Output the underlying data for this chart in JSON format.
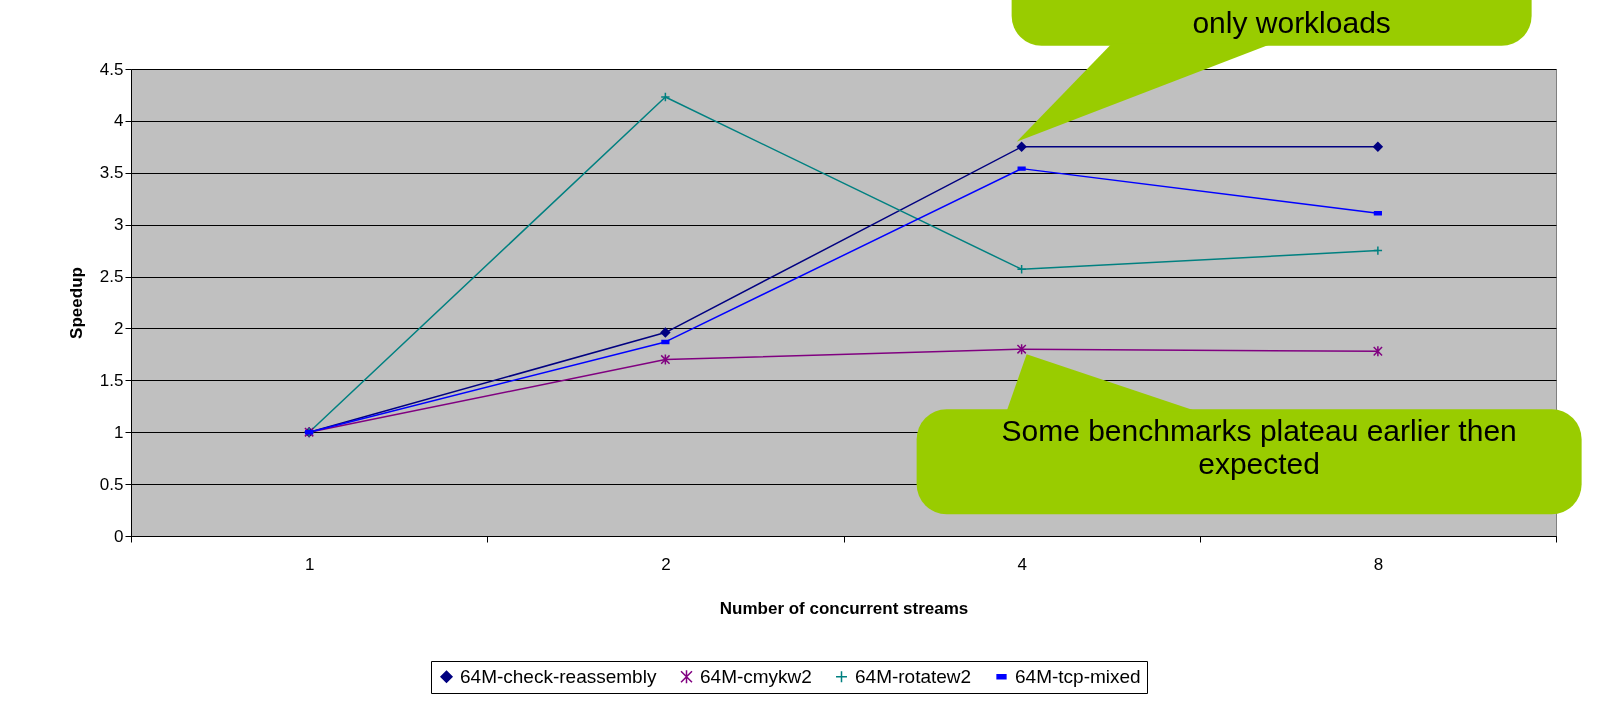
{
  "chart_data": {
    "type": "line",
    "xlabel": "Number of concurrent streams",
    "ylabel": "Speedup",
    "categories": [
      "1",
      "2",
      "4",
      "8"
    ],
    "ylim": [
      0,
      4.5
    ],
    "yticks": [
      0,
      0.5,
      1,
      1.5,
      2,
      2.5,
      3,
      3.5,
      4,
      4.5
    ],
    "grid": "y",
    "legend": "bottom",
    "series": [
      {
        "name": "64M-check-reassembly",
        "color": "#000080",
        "marker": "diamond",
        "values": [
          1,
          1.96,
          3.75,
          3.75
        ]
      },
      {
        "name": "64M-cmykw2",
        "color": "#800080",
        "marker": "cross",
        "values": [
          1,
          1.7,
          1.8,
          1.78
        ]
      },
      {
        "name": "64M-rotatew2",
        "color": "#008080",
        "marker": "plus",
        "values": [
          1,
          4.23,
          2.57,
          2.75
        ]
      },
      {
        "name": "64M-tcp-mixed",
        "color": "#0000ff",
        "marker": "square",
        "values": [
          1,
          1.87,
          3.54,
          3.11
        ]
      }
    ],
    "annotations": [
      {
        "text": "only workloads",
        "x": "4",
        "y": 3.75
      },
      {
        "text": "Some benchmarks plateau earlier then expected",
        "x": "4",
        "y": 1.8
      }
    ]
  }
}
